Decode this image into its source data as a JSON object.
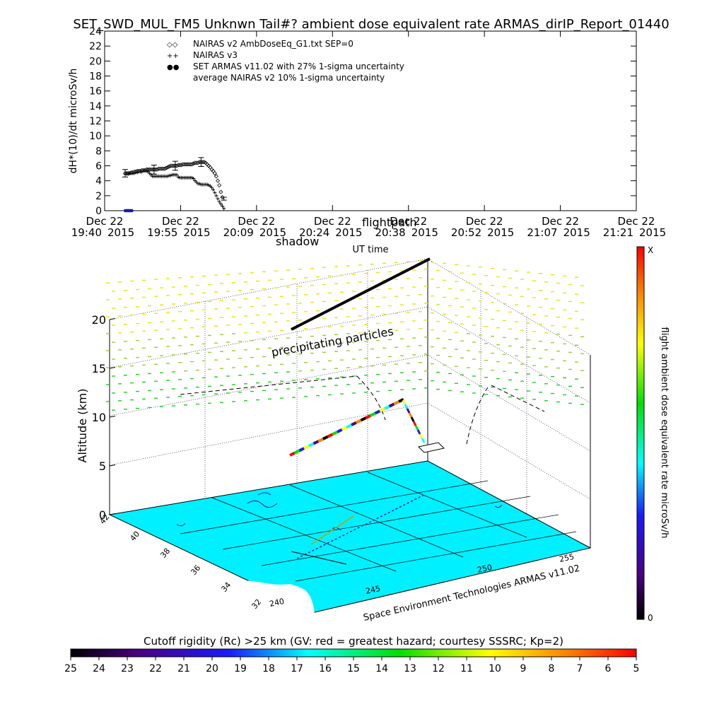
{
  "title": "SET_SWD_MUL_FM5 Unknwn Tail#? ambient dose equivalent rate ARMAS_dirIP_Report_01440",
  "chart_data": [
    {
      "type": "scatter",
      "ylabel": "dH*(10)/dt microSv/h",
      "xlabel": "UT time",
      "ylim": [
        0,
        24
      ],
      "y_ticks": [
        "0",
        "2",
        "4",
        "6",
        "8",
        "10",
        "12",
        "14",
        "16",
        "18",
        "20",
        "22",
        "24"
      ],
      "x_ticks": [
        {
          "date": "Dec 22",
          "time": "19:40",
          "year": "2015"
        },
        {
          "date": "Dec 22",
          "time": "19:55",
          "year": "2015"
        },
        {
          "date": "Dec 22",
          "time": "20:09",
          "year": "2015"
        },
        {
          "date": "Dec 22",
          "time": "20:24",
          "year": "2015"
        },
        {
          "date": "Dec 22",
          "time": "20:38",
          "year": "2015"
        },
        {
          "date": "Dec 22",
          "time": "20:52",
          "year": "2015"
        },
        {
          "date": "Dec 22",
          "time": "21:07",
          "year": "2015"
        },
        {
          "date": "Dec 22",
          "time": "21:21",
          "year": "2015"
        }
      ],
      "legend": [
        {
          "symbol": "◇◇",
          "label": "NAIRAS v2 AmbDoseEq_G1.txt SEP=0"
        },
        {
          "symbol": "++",
          "label": "NAIRAS v3"
        },
        {
          "symbol": "●●",
          "label": "SET ARMAS v11.02 with 27% 1-sigma uncertainty"
        },
        {
          "symbol": "",
          "label": "average NAIRAS v2 10% 1-sigma uncertainty"
        }
      ],
      "legend_position": "top-left",
      "series": [
        {
          "name": "NAIRAS v2 AmbDoseEq_G1.txt SEP=0",
          "marker": "diamond",
          "x": [
            0.27,
            0.29,
            0.31,
            0.33,
            0.35,
            0.37,
            0.39,
            0.41,
            0.43,
            0.45,
            0.47,
            0.49,
            0.51,
            0.53,
            0.55,
            0.57,
            0.59,
            0.61,
            0.63,
            0.65,
            0.67,
            0.69,
            0.71,
            0.73,
            0.75,
            0.77,
            0.79,
            0.81,
            0.83,
            0.85,
            0.87,
            0.89,
            0.91,
            0.93,
            0.95,
            0.97,
            0.99,
            1.01,
            1.03,
            1.05,
            1.07,
            1.09,
            1.11,
            1.13,
            1.15,
            1.17,
            1.19,
            1.21,
            1.23,
            1.25,
            1.27,
            1.29,
            1.31,
            1.33,
            1.35,
            1.37,
            1.39,
            1.41,
            1.43,
            1.45,
            1.47,
            1.49,
            1.51,
            1.53,
            1.55
          ],
          "y": [
            5.0,
            5.0,
            5.0,
            5.0,
            5.1,
            5.1,
            5.2,
            5.2,
            5.3,
            5.3,
            5.3,
            5.4,
            5.4,
            5.4,
            5.5,
            5.5,
            5.5,
            5.5,
            5.5,
            5.5,
            5.5,
            5.5,
            5.6,
            5.6,
            5.6,
            5.6,
            5.6,
            5.7,
            5.8,
            5.9,
            6.0,
            6.0,
            6.0,
            6.0,
            6.0,
            6.1,
            6.1,
            6.1,
            6.2,
            6.2,
            6.2,
            6.2,
            6.2,
            6.2,
            6.2,
            6.3,
            6.4,
            6.4,
            6.4,
            6.5,
            6.5,
            6.5,
            6.5,
            6.4,
            6.2,
            6.0,
            5.8,
            5.5,
            5.3,
            5.0,
            4.6,
            4.0,
            3.4,
            2.5,
            1.8
          ]
        },
        {
          "name": "NAIRAS v3",
          "marker": "plus",
          "x": [
            0.27,
            0.29,
            0.31,
            0.33,
            0.35,
            0.37,
            0.39,
            0.41,
            0.43,
            0.45,
            0.47,
            0.49,
            0.51,
            0.53,
            0.55,
            0.57,
            0.59,
            0.61,
            0.63,
            0.65,
            0.67,
            0.69,
            0.71,
            0.73,
            0.75,
            0.77,
            0.79,
            0.81,
            0.83,
            0.85,
            0.87,
            0.89,
            0.91,
            0.93,
            0.95,
            0.97,
            0.99,
            1.01,
            1.03,
            1.05,
            1.07,
            1.09,
            1.11,
            1.13,
            1.15,
            1.17,
            1.19,
            1.21,
            1.23,
            1.25,
            1.27,
            1.29,
            1.31,
            1.33,
            1.35,
            1.37,
            1.39,
            1.41,
            1.43,
            1.45,
            1.47,
            1.49,
            1.51,
            1.53,
            1.55,
            1.57
          ],
          "y": [
            4.9,
            4.9,
            4.9,
            5.0,
            5.0,
            5.0,
            5.0,
            5.1,
            5.1,
            5.2,
            5.2,
            5.2,
            5.3,
            5.3,
            5.3,
            5.2,
            5.0,
            4.8,
            4.6,
            4.6,
            4.6,
            4.6,
            4.6,
            4.6,
            4.6,
            4.6,
            4.6,
            4.6,
            4.6,
            4.7,
            4.7,
            4.8,
            4.8,
            4.8,
            4.8,
            4.5,
            4.4,
            4.4,
            4.4,
            4.4,
            4.4,
            4.4,
            4.4,
            4.4,
            4.4,
            4.3,
            4.0,
            3.8,
            3.6,
            3.6,
            3.5,
            3.5,
            3.5,
            3.5,
            3.5,
            3.4,
            3.3,
            3.1,
            2.8,
            2.4,
            2.0,
            1.6,
            1.2,
            0.9,
            0.6,
            0.3
          ]
        },
        {
          "name": "SET ARMAS v11.02 with 27% 1-sigma uncertainty",
          "marker": "dot",
          "x": [
            0.27,
            0.28,
            0.29,
            0.3,
            0.31,
            0.32,
            0.33,
            0.34,
            0.35,
            0.36
          ],
          "y": [
            0,
            0,
            0,
            0,
            0,
            0,
            0,
            0,
            0,
            0
          ]
        }
      ],
      "error_bars": [
        {
          "x": 0.27,
          "y": 5.0,
          "lo": 4.5,
          "hi": 5.5
        },
        {
          "x": 0.65,
          "y": 5.5,
          "lo": 4.9,
          "hi": 6.1
        },
        {
          "x": 0.93,
          "y": 6.0,
          "lo": 5.4,
          "hi": 6.6
        },
        {
          "x": 1.27,
          "y": 6.5,
          "lo": 5.9,
          "hi": 7.1
        },
        {
          "x": 1.57,
          "y": 1.6,
          "lo": 1.4,
          "hi": 1.8
        }
      ],
      "overlay_labels": [
        "shadow",
        "flightpath"
      ]
    },
    {
      "type": "scatter",
      "zlabel": "Altitude (km)",
      "z_ticks": [
        "0",
        "5",
        "10",
        "15",
        "20"
      ],
      "lat_ticks": [
        "42",
        "40",
        "38",
        "36",
        "34",
        "32"
      ],
      "lon_ticks": [
        "240",
        "245",
        "250",
        "255"
      ],
      "annotation": "precipitating particles",
      "credit": "Space Environment Technologies ARMAS v11.02",
      "colorbar": {
        "label": "flight ambient dose equivalent rate microSv/h",
        "min": "0",
        "max": "X"
      },
      "cutoff_scale": {
        "label": "Cutoff rigidity (Rc) >25 km (GV: red = greatest hazard; courtesy SSSRC; Kp=2)",
        "ticks": [
          "25",
          "24",
          "23",
          "22",
          "21",
          "20",
          "19",
          "18",
          "17",
          "16",
          "15",
          "14",
          "13",
          "12",
          "11",
          "10",
          "9",
          "8",
          "7",
          "6",
          "5"
        ]
      }
    }
  ]
}
